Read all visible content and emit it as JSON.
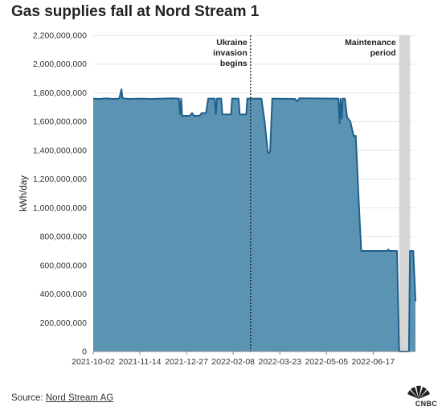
{
  "source": {
    "prefix": "Source: ",
    "link": "Nord Stream AG"
  },
  "logo": {
    "text": "CNBC",
    "icon": "peacock-logo-icon"
  },
  "chart_data": {
    "type": "area",
    "title": "Gas supplies fall at Nord Stream 1",
    "ylabel": "kWh/day",
    "xlabel": "",
    "ylim": [
      0,
      2200000000
    ],
    "yticks": [
      0,
      200000000,
      400000000,
      600000000,
      800000000,
      1000000000,
      1200000000,
      1400000000,
      1600000000,
      1800000000,
      2000000000,
      2200000000
    ],
    "ytick_labels": [
      "0",
      "200,000,000",
      "400,000,000",
      "600,000,000",
      "800,000,000",
      "1,000,000,000",
      "1,200,000,000",
      "1,400,000,000",
      "1,600,000,000",
      "1,800,000,000",
      "2,000,000,000",
      "2,200,000,000"
    ],
    "xlim": [
      "2021-10-02",
      "2022-07-26"
    ],
    "xticks": [
      "2021-10-02",
      "2021-11-14",
      "2021-12-27",
      "2022-02-08",
      "2022-03-23",
      "2022-05-05",
      "2022-06-17"
    ],
    "grid": "horizontal",
    "colors": {
      "fill": "#5b93b3",
      "line": "#1f5f8c",
      "band": "#d6d6d6"
    },
    "annotations": [
      {
        "type": "vline",
        "x": "2022-02-24",
        "style": "dotted",
        "label": [
          "Ukraine",
          "invasion",
          "begins"
        ]
      },
      {
        "type": "band",
        "x0": "2022-07-11",
        "x1": "2022-07-21",
        "label": [
          "Maintenance",
          "period"
        ]
      }
    ],
    "series": [
      {
        "points": [
          [
            "2021-10-02",
            1760000000
          ],
          [
            "2021-10-08",
            1758000000
          ],
          [
            "2021-10-14",
            1762000000
          ],
          [
            "2021-10-20",
            1758000000
          ],
          [
            "2021-10-26",
            1760000000
          ],
          [
            "2021-10-28",
            1825000000
          ],
          [
            "2021-10-29",
            1762000000
          ],
          [
            "2021-11-04",
            1758000000
          ],
          [
            "2021-11-14",
            1760000000
          ],
          [
            "2021-11-24",
            1758000000
          ],
          [
            "2021-12-04",
            1760000000
          ],
          [
            "2021-12-14",
            1762000000
          ],
          [
            "2021-12-20",
            1760000000
          ],
          [
            "2021-12-21",
            1650000000
          ],
          [
            "2021-12-22",
            1760000000
          ],
          [
            "2021-12-23",
            1640000000
          ],
          [
            "2021-12-30",
            1640000000
          ],
          [
            "2022-01-01",
            1660000000
          ],
          [
            "2022-01-03",
            1640000000
          ],
          [
            "2022-01-08",
            1640000000
          ],
          [
            "2022-01-10",
            1660000000
          ],
          [
            "2022-01-14",
            1660000000
          ],
          [
            "2022-01-16",
            1760000000
          ],
          [
            "2022-01-22",
            1760000000
          ],
          [
            "2022-01-23",
            1650000000
          ],
          [
            "2022-01-24",
            1760000000
          ],
          [
            "2022-01-28",
            1760000000
          ],
          [
            "2022-01-29",
            1650000000
          ],
          [
            "2022-02-06",
            1650000000
          ],
          [
            "2022-02-07",
            1760000000
          ],
          [
            "2022-02-13",
            1760000000
          ],
          [
            "2022-02-14",
            1650000000
          ],
          [
            "2022-02-20",
            1650000000
          ],
          [
            "2022-02-21",
            1760000000
          ],
          [
            "2022-03-06",
            1760000000
          ],
          [
            "2022-03-09",
            1600000000
          ],
          [
            "2022-03-12",
            1380000000
          ],
          [
            "2022-03-14",
            1390000000
          ],
          [
            "2022-03-16",
            1760000000
          ],
          [
            "2022-04-06",
            1758000000
          ],
          [
            "2022-04-08",
            1740000000
          ],
          [
            "2022-04-10",
            1762000000
          ],
          [
            "2022-05-16",
            1760000000
          ],
          [
            "2022-05-17",
            1590000000
          ],
          [
            "2022-05-18",
            1760000000
          ],
          [
            "2022-05-19",
            1620000000
          ],
          [
            "2022-05-20",
            1760000000
          ],
          [
            "2022-05-22",
            1760000000
          ],
          [
            "2022-05-24",
            1630000000
          ],
          [
            "2022-05-27",
            1600000000
          ],
          [
            "2022-05-30",
            1500000000
          ],
          [
            "2022-06-01",
            1500000000
          ],
          [
            "2022-06-04",
            1000000000
          ],
          [
            "2022-06-06",
            700000000
          ],
          [
            "2022-06-30",
            700000000
          ],
          [
            "2022-07-01",
            710000000
          ],
          [
            "2022-07-02",
            700000000
          ],
          [
            "2022-07-09",
            700000000
          ],
          [
            "2022-07-11",
            0
          ],
          [
            "2022-07-20",
            0
          ],
          [
            "2022-07-21",
            700000000
          ],
          [
            "2022-07-24",
            700000000
          ],
          [
            "2022-07-26",
            350000000
          ]
        ]
      }
    ]
  }
}
